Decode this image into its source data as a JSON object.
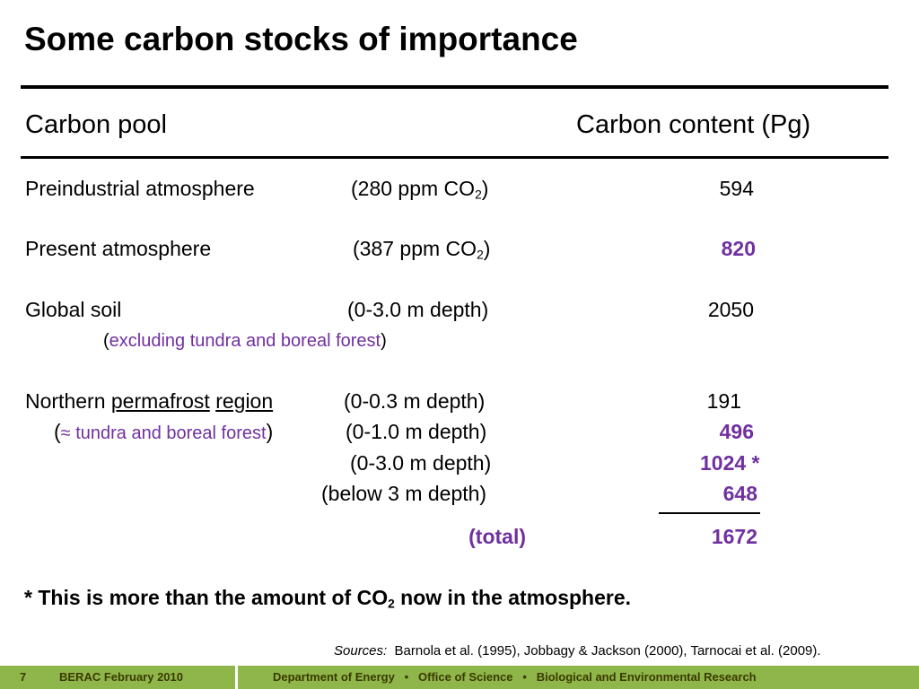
{
  "title": "Some carbon stocks of importance",
  "headers": {
    "pool": "Carbon pool",
    "content": "Carbon content (Pg)"
  },
  "rows": {
    "preindustrial": {
      "label": "Preindustrial atmosphere",
      "note_prefix": "(280 ppm CO",
      "note_sub": "2",
      "note_suffix": ")",
      "value": "594"
    },
    "present": {
      "label": "Present atmosphere",
      "note_prefix": "(387 ppm CO",
      "note_sub": "2",
      "note_suffix": ")",
      "value": "820"
    },
    "soil": {
      "label": "Global soil",
      "note": "(0-3.0 m depth)",
      "value": "2050",
      "sub_open": "(",
      "sub_text": "excluding tundra and boreal forest",
      "sub_close": ")"
    },
    "permafrost": {
      "label_prefix": "Northern ",
      "label_word1": "permafrost",
      "label_word2": "region",
      "sub_open": "(",
      "sub_text": "≈ tundra and boreal forest",
      "sub_close": ")",
      "depth_1": "(0-0.3 m depth)",
      "value_1": "191",
      "depth_2": "(0-1.0 m depth)",
      "value_2": "496",
      "depth_3": "(0-3.0 m depth)",
      "value_3": "1024 *",
      "depth_4": "(below 3 m depth)",
      "value_4": "648",
      "total_label": "(total)",
      "total_value": "1672"
    }
  },
  "note": {
    "prefix": "* This is more than the amount of CO",
    "sub": "2",
    "suffix": " now in the atmosphere."
  },
  "sources": {
    "label": "Sources:",
    "text": "Barnola et al. (1995), Jobbagy & Jackson (2000), Tarnocai et al. (2009)."
  },
  "footer": {
    "page": "7",
    "event": "BERAC February  2010",
    "org": "Department of Energy   •   Office of Science   •   Biological and Environmental Research"
  },
  "colors": {
    "accent_purple": "#7030a0",
    "footer_green": "#8fb64a"
  }
}
